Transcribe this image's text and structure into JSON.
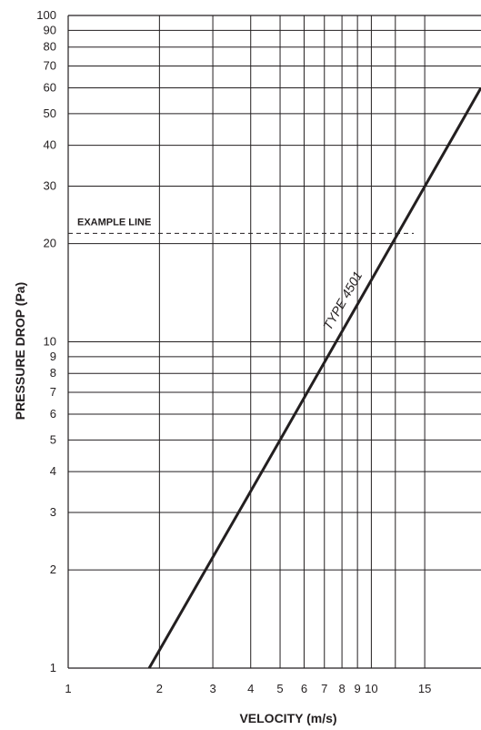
{
  "chart_data": {
    "type": "line",
    "xlabel": "VELOCITY (m/s)",
    "ylabel": "PRESSURE DROP (Pa)",
    "x_scale": "log",
    "y_scale": "log",
    "xlim": [
      1,
      23
    ],
    "ylim": [
      1,
      100
    ],
    "grid": true,
    "x_ticks": [
      1,
      2,
      3,
      4,
      5,
      6,
      7,
      8,
      9,
      10,
      15
    ],
    "x_tick_labels": [
      "1",
      "2",
      "3",
      "4",
      "5",
      "6",
      "7",
      "8",
      "9",
      "10",
      "15"
    ],
    "x_gridlines": [
      2,
      3,
      4,
      5,
      6,
      7,
      8,
      9,
      10,
      12,
      15
    ],
    "y_ticks": [
      1,
      2,
      3,
      4,
      5,
      6,
      7,
      8,
      9,
      10,
      20,
      30,
      40,
      50,
      60,
      70,
      80,
      90,
      100
    ],
    "y_tick_labels": [
      "1",
      "2",
      "3",
      "4",
      "5",
      "6",
      "7",
      "8",
      "9",
      "10",
      "20",
      "30",
      "40",
      "50",
      "60",
      "70",
      "80",
      "90",
      "100"
    ],
    "series": [
      {
        "name": "TYPE 4501",
        "x": [
          1.85,
          5.0,
          23.0
        ],
        "y": [
          1.0,
          5.0,
          60.0
        ],
        "color": "#231f20"
      }
    ],
    "annotations": [
      {
        "text": "EXAMPLE LINE",
        "type": "horizontal-dashed",
        "y": 21.5,
        "x_end": 13.8
      }
    ]
  }
}
